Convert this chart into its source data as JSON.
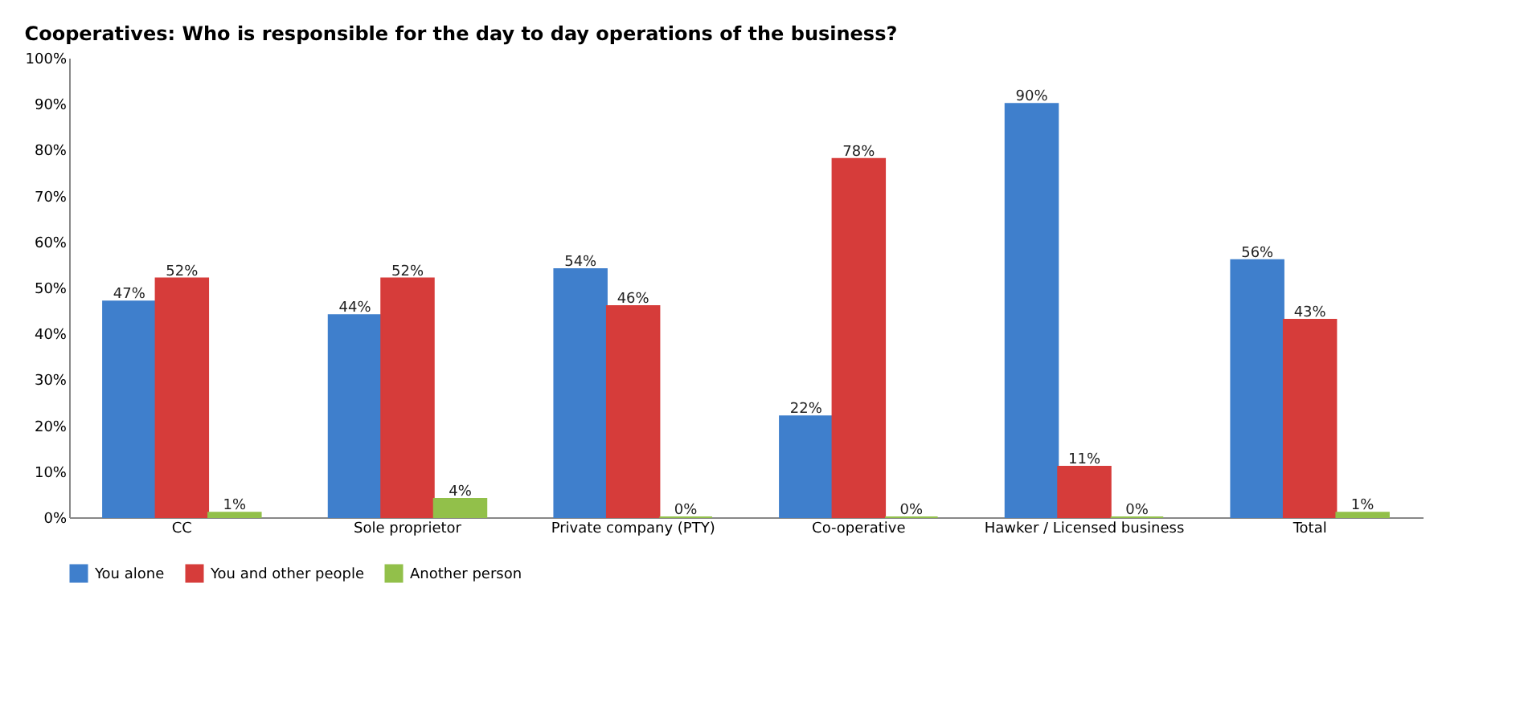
{
  "chart_data": {
    "type": "bar",
    "title": "Cooperatives:  Who is responsible for the day to day operations of the business?",
    "categories": [
      "CC",
      "Sole proprietor",
      "Private company (PTY)",
      "Co-operative",
      "Hawker / Licensed business",
      "Total"
    ],
    "series": [
      {
        "name": "You alone",
        "color": "#3f7fcc",
        "values": [
          47,
          44,
          54,
          22,
          90,
          56
        ],
        "value_labels": [
          "47%",
          "44%",
          "54%",
          "22%",
          "90%",
          "56%"
        ]
      },
      {
        "name": "You and other people",
        "color": "#d63c3a",
        "values": [
          52,
          52,
          46,
          78,
          11,
          43
        ],
        "value_labels": [
          "52%",
          "52%",
          "46%",
          "78%",
          "11%",
          "43%"
        ]
      },
      {
        "name": "Another person",
        "color": "#92c04a",
        "values": [
          1,
          4,
          0,
          0,
          0,
          1
        ],
        "value_labels": [
          "1%",
          "4%",
          "0%",
          "0%",
          "0%",
          "1%"
        ]
      }
    ],
    "ylim": [
      0,
      100
    ],
    "yticks": [
      {
        "value": 0,
        "label": "0%"
      },
      {
        "value": 10,
        "label": "10%"
      },
      {
        "value": 20,
        "label": "20%"
      },
      {
        "value": 30,
        "label": "30%"
      },
      {
        "value": 40,
        "label": "40%"
      },
      {
        "value": 50,
        "label": "50%"
      },
      {
        "value": 60,
        "label": "60%"
      },
      {
        "value": 70,
        "label": "70%"
      },
      {
        "value": 80,
        "label": "80%"
      },
      {
        "value": 90,
        "label": "90%"
      },
      {
        "value": 100,
        "label": "100%"
      }
    ],
    "grid": false,
    "legend": "bottom"
  }
}
